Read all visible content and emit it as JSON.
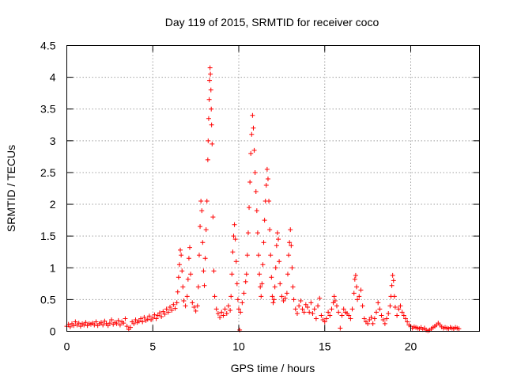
{
  "chart_data": {
    "type": "scatter",
    "title": "Day 119 of 2015, SRMTID for receiver coco",
    "xlabel": "GPS time / hours",
    "ylabel": "SRMTID / TECUs",
    "xlim": [
      0,
      24
    ],
    "ylim": [
      0,
      4.5
    ],
    "xticks": [
      0,
      5,
      10,
      15,
      20
    ],
    "xtick_labels": [
      "0",
      "5",
      "10",
      "15",
      "20"
    ],
    "yticks": [
      0,
      0.5,
      1,
      1.5,
      2,
      2.5,
      3,
      3.5,
      4,
      4.5
    ],
    "ytick_labels": [
      "0",
      "0.5",
      "1",
      "1.5",
      "2",
      "2.5",
      "3",
      "3.5",
      "4",
      "4.5"
    ],
    "grid": true,
    "marker": "plus",
    "series": [
      {
        "name": "coco",
        "color": "#ff0000",
        "points": [
          [
            0.0,
            0.08
          ],
          [
            0.1,
            0.11
          ],
          [
            0.2,
            0.07
          ],
          [
            0.3,
            0.12
          ],
          [
            0.4,
            0.09
          ],
          [
            0.5,
            0.15
          ],
          [
            0.6,
            0.1
          ],
          [
            0.7,
            0.13
          ],
          [
            0.8,
            0.08
          ],
          [
            0.9,
            0.12
          ],
          [
            1.0,
            0.1
          ],
          [
            1.1,
            0.14
          ],
          [
            1.2,
            0.09
          ],
          [
            1.3,
            0.12
          ],
          [
            1.4,
            0.11
          ],
          [
            1.5,
            0.13
          ],
          [
            1.6,
            0.1
          ],
          [
            1.7,
            0.15
          ],
          [
            1.8,
            0.09
          ],
          [
            1.9,
            0.12
          ],
          [
            2.0,
            0.14
          ],
          [
            2.1,
            0.1
          ],
          [
            2.2,
            0.16
          ],
          [
            2.3,
            0.12
          ],
          [
            2.4,
            0.09
          ],
          [
            2.5,
            0.13
          ],
          [
            2.6,
            0.18
          ],
          [
            2.7,
            0.11
          ],
          [
            2.8,
            0.14
          ],
          [
            2.9,
            0.12
          ],
          [
            3.0,
            0.17
          ],
          [
            3.1,
            0.1
          ],
          [
            3.2,
            0.15
          ],
          [
            3.3,
            0.13
          ],
          [
            3.4,
            0.2
          ],
          [
            3.5,
            0.08
          ],
          [
            3.6,
            0.03
          ],
          [
            3.7,
            0.06
          ],
          [
            3.8,
            0.15
          ],
          [
            3.9,
            0.12
          ],
          [
            4.0,
            0.18
          ],
          [
            4.1,
            0.14
          ],
          [
            4.2,
            0.16
          ],
          [
            4.3,
            0.2
          ],
          [
            4.4,
            0.15
          ],
          [
            4.5,
            0.22
          ],
          [
            4.6,
            0.17
          ],
          [
            4.7,
            0.19
          ],
          [
            4.8,
            0.24
          ],
          [
            4.9,
            0.18
          ],
          [
            5.0,
            0.21
          ],
          [
            5.1,
            0.26
          ],
          [
            5.2,
            0.2
          ],
          [
            5.3,
            0.25
          ],
          [
            5.4,
            0.29
          ],
          [
            5.5,
            0.23
          ],
          [
            5.6,
            0.31
          ],
          [
            5.7,
            0.27
          ],
          [
            5.8,
            0.35
          ],
          [
            5.9,
            0.3
          ],
          [
            6.0,
            0.38
          ],
          [
            6.1,
            0.33
          ],
          [
            6.2,
            0.42
          ],
          [
            6.3,
            0.36
          ],
          [
            6.4,
            0.45
          ],
          [
            6.45,
            0.62
          ],
          [
            6.5,
            0.85
          ],
          [
            6.55,
            1.05
          ],
          [
            6.6,
            1.28
          ],
          [
            6.65,
            1.2
          ],
          [
            6.7,
            0.95
          ],
          [
            6.75,
            0.7
          ],
          [
            6.8,
            0.48
          ],
          [
            6.9,
            0.4
          ],
          [
            7.0,
            0.55
          ],
          [
            7.05,
            0.82
          ],
          [
            7.1,
            1.15
          ],
          [
            7.15,
            1.32
          ],
          [
            7.2,
            0.9
          ],
          [
            7.3,
            0.45
          ],
          [
            7.4,
            0.38
          ],
          [
            7.5,
            0.32
          ],
          [
            7.6,
            0.4
          ],
          [
            7.65,
            0.7
          ],
          [
            7.7,
            1.2
          ],
          [
            7.75,
            1.65
          ],
          [
            7.8,
            2.05
          ],
          [
            7.85,
            1.9
          ],
          [
            7.9,
            1.4
          ],
          [
            7.95,
            0.95
          ],
          [
            8.0,
            0.72
          ],
          [
            8.05,
            1.15
          ],
          [
            8.1,
            1.6
          ],
          [
            8.15,
            2.05
          ],
          [
            8.2,
            2.7
          ],
          [
            8.22,
            3.0
          ],
          [
            8.25,
            3.35
          ],
          [
            8.28,
            3.65
          ],
          [
            8.3,
            3.95
          ],
          [
            8.33,
            4.15
          ],
          [
            8.35,
            4.05
          ],
          [
            8.38,
            3.8
          ],
          [
            8.4,
            3.5
          ],
          [
            8.42,
            3.25
          ],
          [
            8.45,
            2.95
          ],
          [
            8.5,
            1.8
          ],
          [
            8.55,
            0.95
          ],
          [
            8.6,
            0.55
          ],
          [
            8.7,
            0.35
          ],
          [
            8.8,
            0.28
          ],
          [
            8.9,
            0.22
          ],
          [
            9.0,
            0.3
          ],
          [
            9.1,
            0.25
          ],
          [
            9.2,
            0.35
          ],
          [
            9.3,
            0.28
          ],
          [
            9.4,
            0.4
          ],
          [
            9.5,
            0.33
          ],
          [
            9.55,
            0.55
          ],
          [
            9.6,
            0.9
          ],
          [
            9.65,
            1.25
          ],
          [
            9.7,
            1.5
          ],
          [
            9.75,
            1.68
          ],
          [
            9.8,
            1.45
          ],
          [
            9.85,
            1.1
          ],
          [
            9.9,
            0.75
          ],
          [
            9.95,
            0.5
          ],
          [
            10.0,
            0.35
          ],
          [
            10.05,
            0.02
          ],
          [
            10.1,
            0.3
          ],
          [
            10.2,
            0.45
          ],
          [
            10.3,
            0.6
          ],
          [
            10.4,
            0.78
          ],
          [
            10.45,
            0.9
          ],
          [
            10.5,
            1.2
          ],
          [
            10.55,
            1.55
          ],
          [
            10.6,
            1.95
          ],
          [
            10.65,
            2.35
          ],
          [
            10.7,
            2.8
          ],
          [
            10.75,
            3.1
          ],
          [
            10.8,
            3.4
          ],
          [
            10.85,
            3.2
          ],
          [
            10.9,
            2.85
          ],
          [
            10.95,
            2.5
          ],
          [
            11.0,
            2.2
          ],
          [
            11.05,
            1.9
          ],
          [
            11.1,
            1.55
          ],
          [
            11.15,
            1.2
          ],
          [
            11.2,
            0.9
          ],
          [
            11.25,
            0.7
          ],
          [
            11.3,
            0.55
          ],
          [
            11.35,
            0.75
          ],
          [
            11.4,
            1.05
          ],
          [
            11.45,
            1.4
          ],
          [
            11.5,
            1.75
          ],
          [
            11.55,
            2.05
          ],
          [
            11.6,
            2.3
          ],
          [
            11.65,
            2.55
          ],
          [
            11.7,
            2.4
          ],
          [
            11.75,
            2.05
          ],
          [
            11.8,
            1.6
          ],
          [
            11.85,
            1.2
          ],
          [
            11.9,
            0.85
          ],
          [
            11.95,
            0.55
          ],
          [
            12.0,
            0.45
          ],
          [
            12.05,
            0.5
          ],
          [
            12.1,
            0.7
          ],
          [
            12.15,
            1.0
          ],
          [
            12.2,
            1.35
          ],
          [
            12.25,
            1.55
          ],
          [
            12.3,
            1.45
          ],
          [
            12.35,
            1.1
          ],
          [
            12.4,
            0.75
          ],
          [
            12.5,
            0.55
          ],
          [
            12.6,
            0.48
          ],
          [
            12.7,
            0.52
          ],
          [
            12.8,
            0.6
          ],
          [
            12.85,
            0.9
          ],
          [
            12.9,
            1.2
          ],
          [
            12.95,
            1.4
          ],
          [
            13.0,
            1.6
          ],
          [
            13.05,
            1.35
          ],
          [
            13.1,
            1.0
          ],
          [
            13.15,
            0.7
          ],
          [
            13.2,
            0.5
          ],
          [
            13.3,
            0.35
          ],
          [
            13.4,
            0.28
          ],
          [
            13.5,
            0.4
          ],
          [
            13.6,
            0.48
          ],
          [
            13.7,
            0.35
          ],
          [
            13.8,
            0.3
          ],
          [
            13.9,
            0.42
          ],
          [
            14.0,
            0.38
          ],
          [
            14.1,
            0.3
          ],
          [
            14.2,
            0.45
          ],
          [
            14.3,
            0.28
          ],
          [
            14.4,
            0.35
          ],
          [
            14.5,
            0.2
          ],
          [
            14.6,
            0.4
          ],
          [
            14.7,
            0.52
          ],
          [
            14.8,
            0.25
          ],
          [
            14.9,
            0.18
          ],
          [
            15.0,
            0.15
          ],
          [
            15.1,
            0.2
          ],
          [
            15.2,
            0.3
          ],
          [
            15.3,
            0.25
          ],
          [
            15.4,
            0.35
          ],
          [
            15.5,
            0.45
          ],
          [
            15.55,
            0.55
          ],
          [
            15.6,
            0.48
          ],
          [
            15.7,
            0.4
          ],
          [
            15.8,
            0.3
          ],
          [
            15.9,
            0.05
          ],
          [
            16.0,
            0.25
          ],
          [
            16.1,
            0.35
          ],
          [
            16.2,
            0.3
          ],
          [
            16.3,
            0.28
          ],
          [
            16.4,
            0.25
          ],
          [
            16.5,
            0.2
          ],
          [
            16.6,
            0.35
          ],
          [
            16.7,
            0.6
          ],
          [
            16.75,
            0.82
          ],
          [
            16.8,
            0.88
          ],
          [
            16.85,
            0.7
          ],
          [
            16.9,
            0.5
          ],
          [
            17.0,
            0.55
          ],
          [
            17.1,
            0.65
          ],
          [
            17.2,
            0.4
          ],
          [
            17.3,
            0.2
          ],
          [
            17.4,
            0.15
          ],
          [
            17.5,
            0.12
          ],
          [
            17.6,
            0.18
          ],
          [
            17.7,
            0.22
          ],
          [
            17.8,
            0.12
          ],
          [
            17.9,
            0.2
          ],
          [
            18.0,
            0.3
          ],
          [
            18.1,
            0.45
          ],
          [
            18.2,
            0.35
          ],
          [
            18.3,
            0.25
          ],
          [
            18.4,
            0.18
          ],
          [
            18.5,
            0.12
          ],
          [
            18.6,
            0.2
          ],
          [
            18.7,
            0.28
          ],
          [
            18.8,
            0.4
          ],
          [
            18.85,
            0.55
          ],
          [
            18.9,
            0.72
          ],
          [
            18.95,
            0.88
          ],
          [
            19.0,
            0.8
          ],
          [
            19.05,
            0.55
          ],
          [
            19.1,
            0.38
          ],
          [
            19.2,
            0.25
          ],
          [
            19.3,
            0.35
          ],
          [
            19.4,
            0.4
          ],
          [
            19.5,
            0.3
          ],
          [
            19.6,
            0.25
          ],
          [
            19.7,
            0.2
          ],
          [
            19.8,
            0.15
          ],
          [
            19.9,
            0.1
          ],
          [
            20.0,
            0.08
          ],
          [
            20.1,
            0.05
          ],
          [
            20.2,
            0.07
          ],
          [
            20.3,
            0.06
          ],
          [
            20.4,
            0.05
          ],
          [
            20.5,
            0.04
          ],
          [
            20.6,
            0.06
          ],
          [
            20.7,
            0.03
          ],
          [
            20.8,
            0.05
          ],
          [
            20.9,
            0.02
          ],
          [
            21.0,
            0.01
          ],
          [
            21.1,
            0.02
          ],
          [
            21.2,
            0.04
          ],
          [
            21.3,
            0.06
          ],
          [
            21.4,
            0.08
          ],
          [
            21.5,
            0.1
          ],
          [
            21.6,
            0.13
          ],
          [
            21.7,
            0.1
          ],
          [
            21.8,
            0.07
          ],
          [
            21.9,
            0.05
          ],
          [
            22.0,
            0.06
          ],
          [
            22.1,
            0.05
          ],
          [
            22.2,
            0.04
          ],
          [
            22.3,
            0.06
          ],
          [
            22.4,
            0.05
          ],
          [
            22.5,
            0.04
          ],
          [
            22.6,
            0.06
          ],
          [
            22.7,
            0.05
          ],
          [
            22.8,
            0.04
          ]
        ]
      }
    ]
  }
}
